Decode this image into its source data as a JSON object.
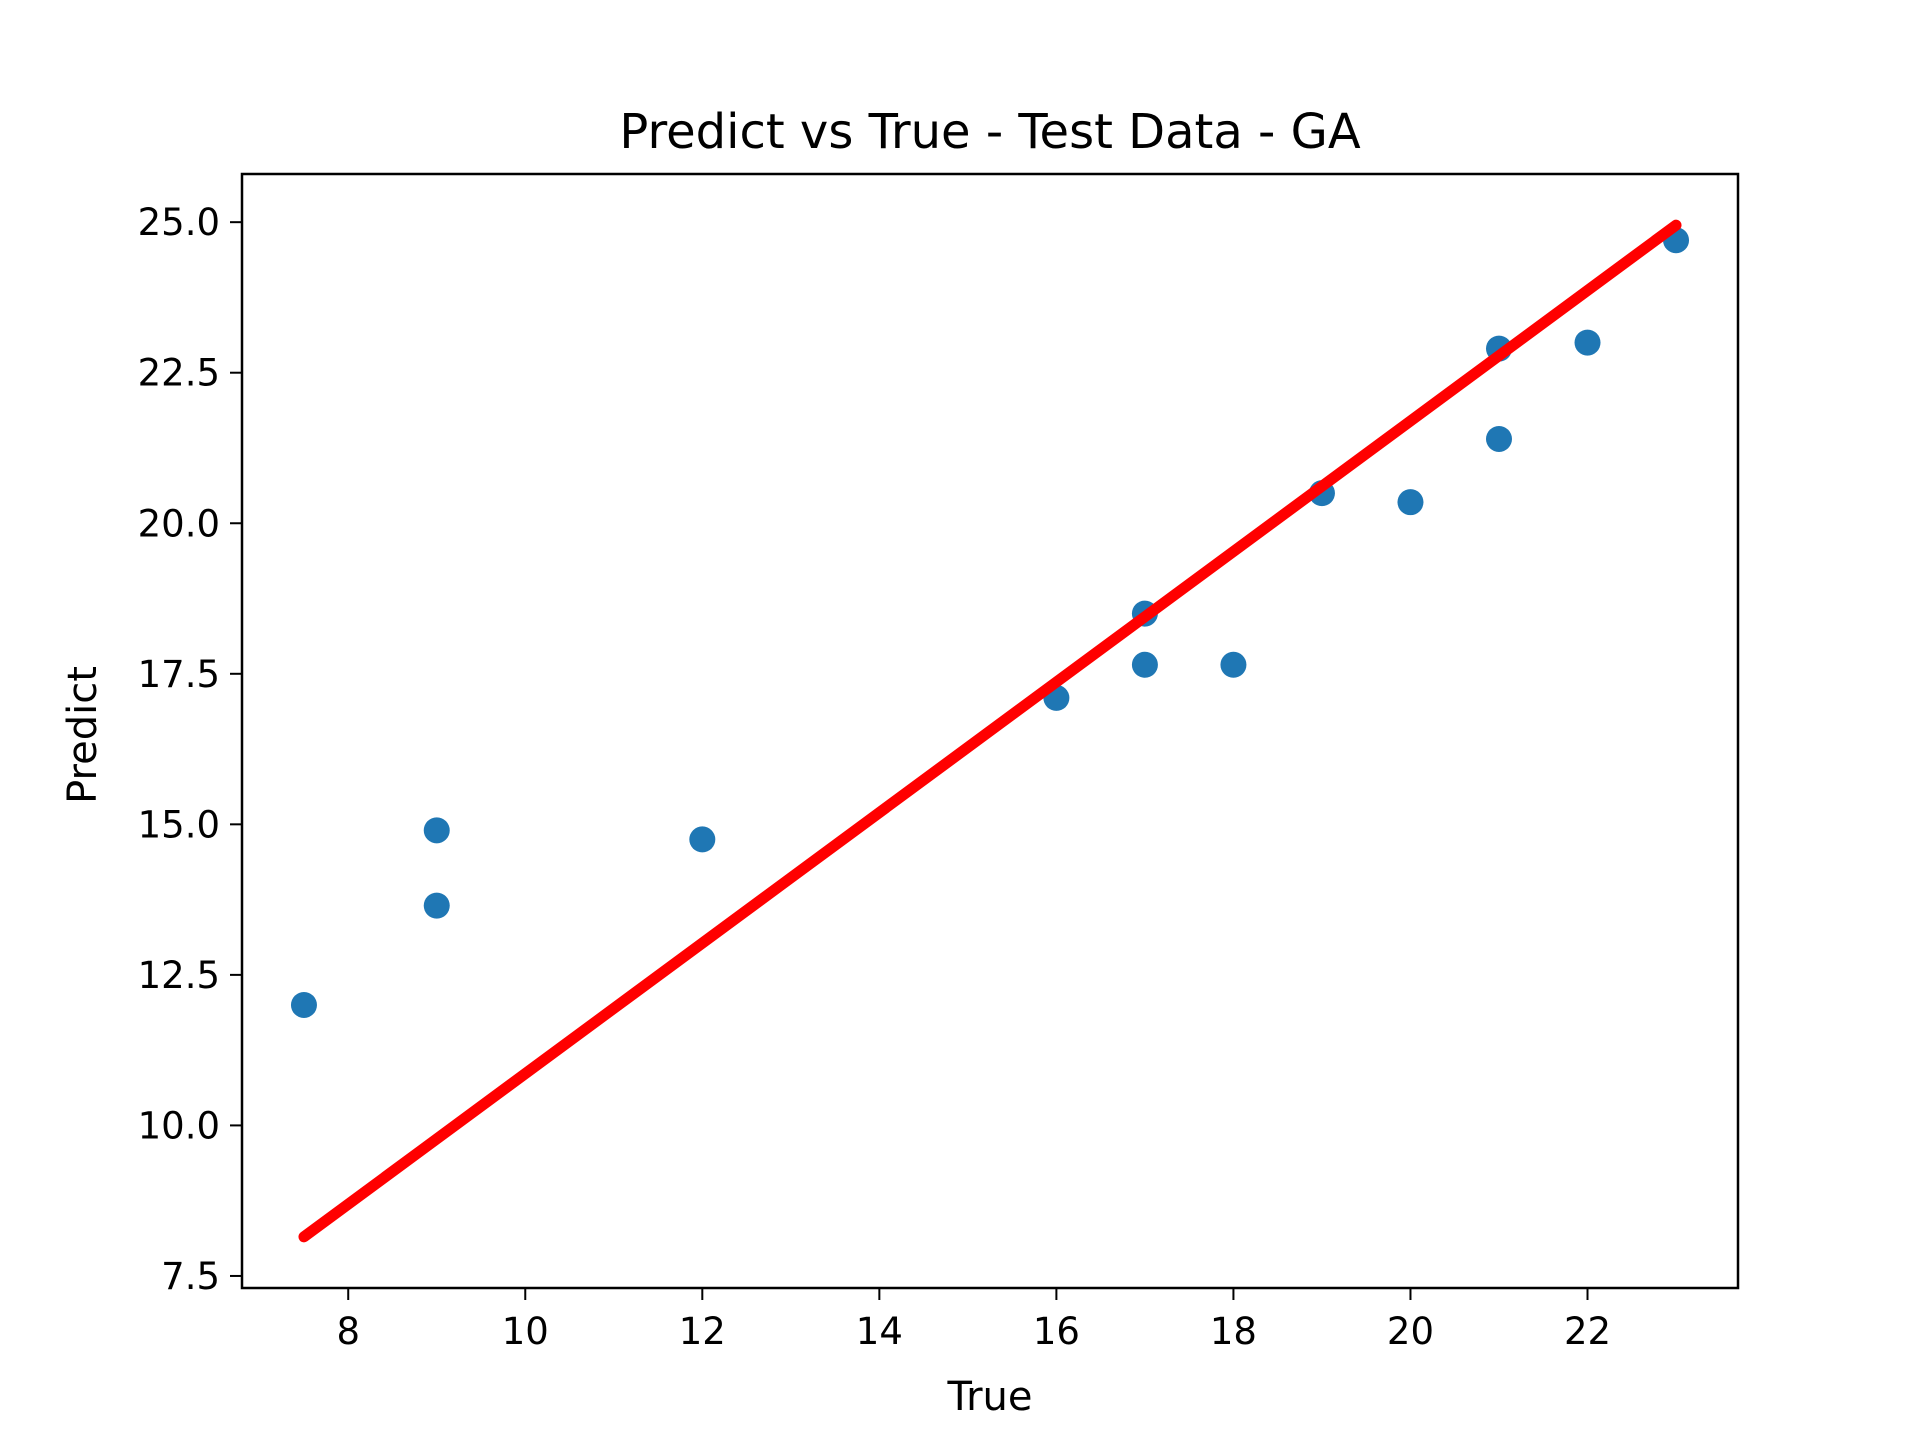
{
  "chart_data": {
    "type": "scatter",
    "title": "Predict vs True - Test Data - GA",
    "xlabel": "True",
    "ylabel": "Predict",
    "xlim": [
      6.8,
      23.7
    ],
    "ylim": [
      7.3,
      25.8
    ],
    "x_ticks": [
      8,
      10,
      12,
      14,
      16,
      18,
      20,
      22
    ],
    "x_tick_labels": [
      "8",
      "10",
      "12",
      "14",
      "16",
      "18",
      "20",
      "22"
    ],
    "y_ticks": [
      7.5,
      10.0,
      12.5,
      15.0,
      17.5,
      20.0,
      22.5,
      25.0
    ],
    "y_tick_labels": [
      "7.5",
      "10.0",
      "12.5",
      "15.0",
      "17.5",
      "20.0",
      "22.5",
      "25.0"
    ],
    "grid": false,
    "series": [
      {
        "type": "scatter",
        "color": "#1f77b4",
        "points": [
          {
            "x": 7.5,
            "y": 12.0
          },
          {
            "x": 9.0,
            "y": 14.9
          },
          {
            "x": 9.0,
            "y": 13.65
          },
          {
            "x": 12.0,
            "y": 14.75
          },
          {
            "x": 16.0,
            "y": 17.1
          },
          {
            "x": 17.0,
            "y": 18.5
          },
          {
            "x": 17.0,
            "y": 17.65
          },
          {
            "x": 18.0,
            "y": 17.65
          },
          {
            "x": 19.0,
            "y": 20.5
          },
          {
            "x": 20.0,
            "y": 20.35
          },
          {
            "x": 21.0,
            "y": 22.9
          },
          {
            "x": 21.0,
            "y": 21.4
          },
          {
            "x": 22.0,
            "y": 23.0
          },
          {
            "x": 23.0,
            "y": 24.7
          }
        ]
      },
      {
        "type": "line",
        "color": "#ff0000",
        "points": [
          {
            "x": 7.5,
            "y": 8.15
          },
          {
            "x": 23.0,
            "y": 24.95
          }
        ]
      }
    ]
  }
}
